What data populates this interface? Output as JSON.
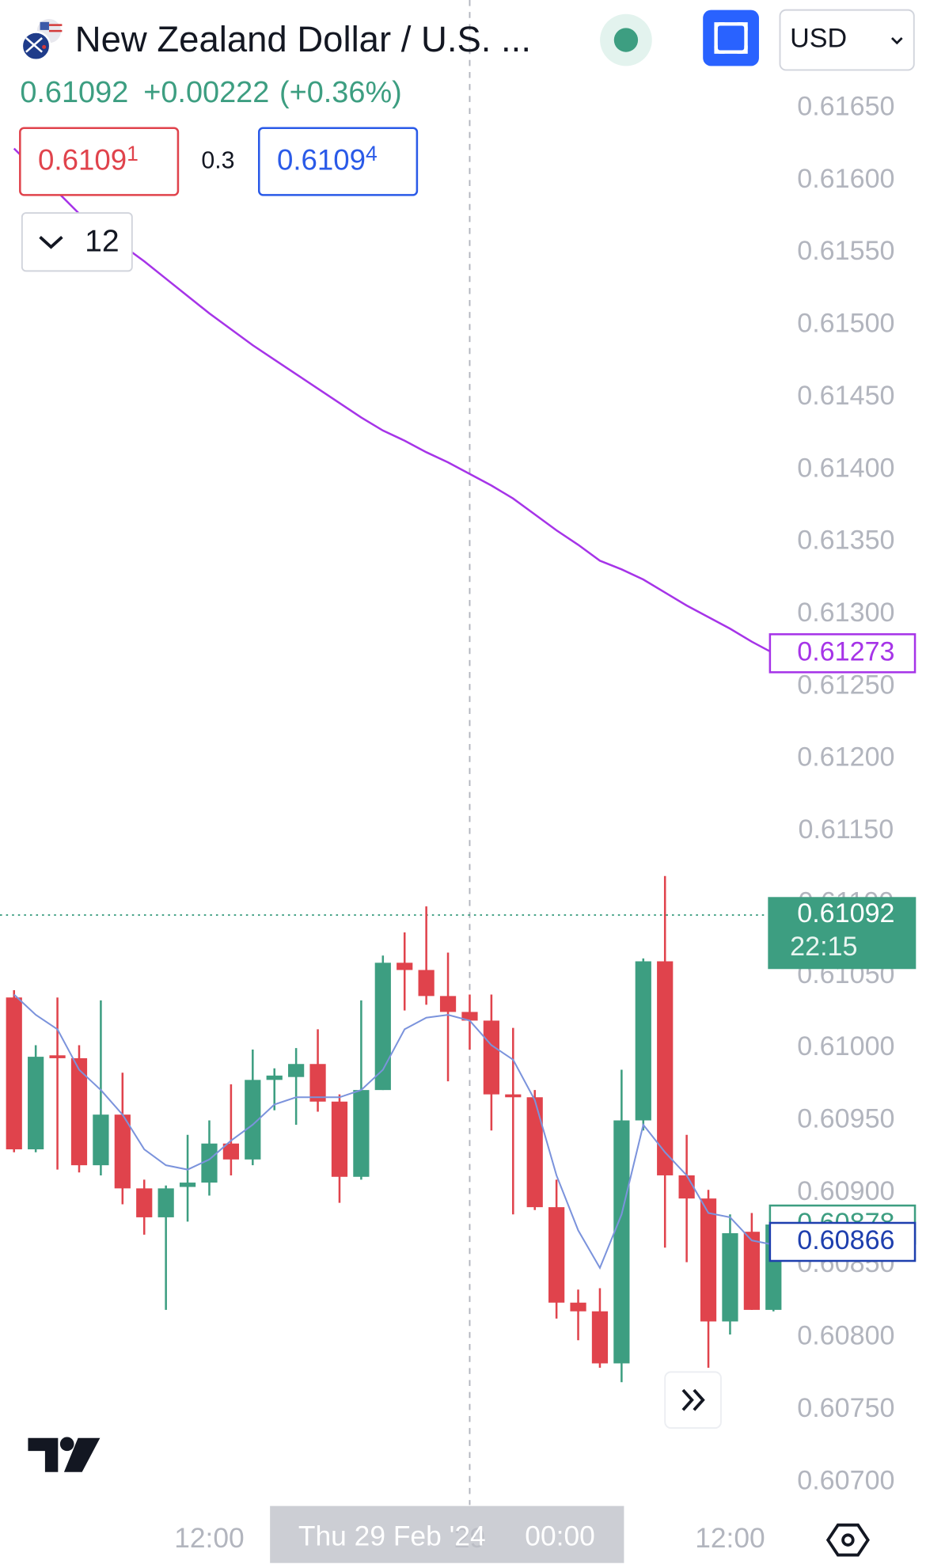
{
  "header": {
    "title": "New Zealand Dollar / U.S. ...",
    "last": "0.61092",
    "change": "+0.00222",
    "change_pct": "(+0.36%)",
    "bid": "0.6109",
    "bid_pip": "1",
    "spread": "0.3",
    "ask": "0.6109",
    "ask_pip": "4",
    "indicators": "12",
    "currency": "USD"
  },
  "chart_data": {
    "type": "candlestick",
    "categories": [
      null,
      null,
      null,
      null,
      null,
      null,
      null,
      null,
      null,
      "12:00",
      null,
      null,
      null,
      null,
      null,
      null,
      null,
      null,
      null,
      null,
      null,
      "29",
      null,
      null,
      null,
      null,
      null,
      null,
      null,
      null,
      null,
      null,
      null,
      "12:00",
      null,
      null
    ],
    "crosshair_label": "Thu 29 Feb '24",
    "crosshair_time": "00:00",
    "open": [
      0.61035,
      0.6093,
      0.60995,
      0.60993,
      0.60919,
      0.60954,
      0.60903,
      0.60883,
      0.60904,
      0.60907,
      0.60934,
      0.60923,
      0.60978,
      0.6098,
      0.60989,
      0.60963,
      0.60911,
      0.60971,
      0.61059,
      0.61054,
      0.61036,
      0.61025,
      0.61019,
      0.60968,
      0.60966,
      0.6089,
      0.60824,
      0.60818,
      0.60782,
      0.6095,
      0.6106,
      0.60912,
      0.60896,
      0.60811,
      0.60873,
      0.60819
    ],
    "high": [
      0.6104,
      0.61002,
      0.61035,
      0.61002,
      0.61033,
      0.60983,
      0.60909,
      0.60905,
      0.6094,
      0.6095,
      0.60975,
      0.60999,
      0.60986,
      0.61,
      0.61013,
      0.60968,
      0.61033,
      0.61064,
      0.6108,
      0.61098,
      0.61066,
      0.61037,
      0.61037,
      0.61014,
      0.60971,
      0.60909,
      0.60833,
      0.60834,
      0.60985,
      0.61062,
      0.61119,
      0.6094,
      0.60902,
      0.60885,
      0.60886,
      0.6088
    ],
    "low": [
      0.60928,
      0.60928,
      0.60916,
      0.60914,
      0.60912,
      0.60892,
      0.60871,
      0.60819,
      0.6088,
      0.60898,
      0.60912,
      0.60919,
      0.60957,
      0.60947,
      0.60956,
      0.60893,
      0.60909,
      0.60971,
      0.61026,
      0.6103,
      0.60977,
      0.60999,
      0.60943,
      0.60885,
      0.60888,
      0.60813,
      0.60798,
      0.60779,
      0.60769,
      0.60943,
      0.60862,
      0.60852,
      0.60779,
      0.60802,
      0.60819,
      0.60818
    ],
    "close": [
      0.6093,
      0.60994,
      0.60993,
      0.60919,
      0.60954,
      0.60903,
      0.60883,
      0.60903,
      0.60907,
      0.60934,
      0.60923,
      0.60978,
      0.60981,
      0.60989,
      0.60963,
      0.60911,
      0.60971,
      0.61059,
      0.61054,
      0.61036,
      0.61025,
      0.61019,
      0.60968,
      0.60966,
      0.6089,
      0.60824,
      0.60818,
      0.60782,
      0.6095,
      0.6106,
      0.60912,
      0.60896,
      0.60811,
      0.60872,
      0.60819,
      0.60878
    ],
    "up_color": "#3d9e81",
    "down_color": "#e0434c",
    "series": [
      {
        "color": "#a634e8",
        "values": [
          0.61622,
          0.61607,
          0.61592,
          0.61577,
          0.61567,
          0.61555,
          0.61544,
          0.61532,
          0.6152,
          0.61508,
          0.61497,
          0.61486,
          0.61476,
          0.61466,
          0.61456,
          0.61446,
          0.61436,
          0.61427,
          0.6142,
          0.61412,
          0.61405,
          0.61397,
          0.61389,
          0.6138,
          0.61369,
          0.61358,
          0.61348,
          0.61337,
          0.61331,
          0.61324,
          0.61315,
          0.61306,
          0.61298,
          0.6129,
          0.61281,
          0.61273
        ]
      },
      {
        "color": "#7b93dc",
        "values": [
          0.61037,
          0.61023,
          0.61013,
          0.60985,
          0.60971,
          0.60954,
          0.6093,
          0.60919,
          0.60916,
          0.60923,
          0.60936,
          0.60947,
          0.60961,
          0.60966,
          0.60966,
          0.60966,
          0.60971,
          0.60985,
          0.61013,
          0.61021,
          0.61023,
          0.61019,
          0.61002,
          0.60992,
          0.60964,
          0.60912,
          0.60874,
          0.60848,
          0.60885,
          0.60947,
          0.60928,
          0.60912,
          0.60886,
          0.60883,
          0.60867,
          0.60864
        ]
      }
    ],
    "price_lines": [
      {
        "value": 0.61273,
        "color": "#a634e8"
      },
      {
        "value": 0.60878,
        "color": "#3d9e81"
      },
      {
        "value": 0.60866,
        "color": "#1e3fae"
      }
    ],
    "last_price": {
      "value": 0.61092,
      "countdown": "22:15",
      "color": "#3d9e81"
    },
    "ylim": [
      0.6068,
      0.6173
    ],
    "yticks": [
      {
        "value": 0.6165,
        "label": "0.61650"
      },
      {
        "value": 0.616,
        "label": "0.61600"
      },
      {
        "value": 0.6155,
        "label": "0.61550"
      },
      {
        "value": 0.615,
        "label": "0.61500"
      },
      {
        "value": 0.6145,
        "label": "0.61450"
      },
      {
        "value": 0.614,
        "label": "0.61400"
      },
      {
        "value": 0.6135,
        "label": "0.61350"
      },
      {
        "value": 0.613,
        "label": "0.61300"
      },
      {
        "value": 0.6125,
        "label": "0.61250"
      },
      {
        "value": 0.612,
        "label": "0.61200"
      },
      {
        "value": 0.6115,
        "label": "0.61150"
      },
      {
        "value": 0.611,
        "label": "0.61100"
      },
      {
        "value": 0.6105,
        "label": "0.61050"
      },
      {
        "value": 0.61,
        "label": "0.61000"
      },
      {
        "value": 0.6095,
        "label": "0.60950"
      },
      {
        "value": 0.609,
        "label": "0.60900"
      },
      {
        "value": 0.6085,
        "label": "0.60850"
      },
      {
        "value": 0.608,
        "label": "0.60800"
      },
      {
        "value": 0.6075,
        "label": "0.60750"
      },
      {
        "value": 0.607,
        "label": "0.60700"
      }
    ],
    "grid": false
  }
}
